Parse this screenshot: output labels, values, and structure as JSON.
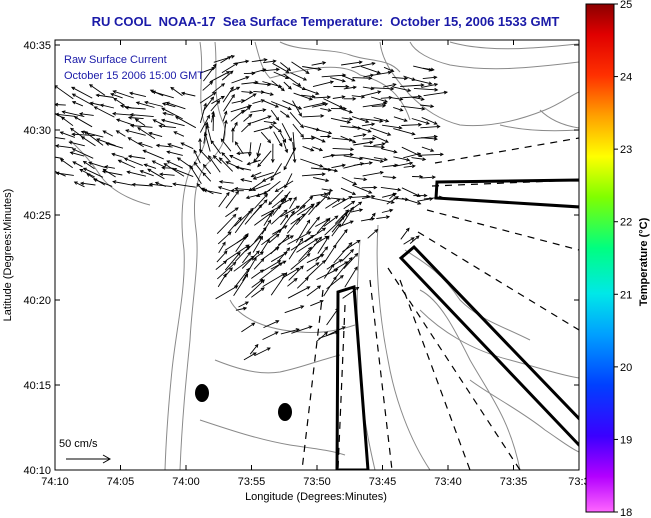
{
  "title": "RU COOL  NOAA-17  Sea Surface Temperature:  October 15, 2006 1533 GMT",
  "annotation": {
    "line1": "Raw Surface Current",
    "line2": "October 15 2006 15:00 GMT",
    "scale_label": "50 cm/s"
  },
  "axes": {
    "xlabel": "Longitude (Degrees:Minutes)",
    "ylabel": "Latitude (Degrees:Minutes)",
    "xticks": [
      "74:10",
      "74:05",
      "74:00",
      "73:55",
      "73:50",
      "73:45",
      "73:40",
      "73:35",
      "73:3"
    ],
    "yticks": [
      "40:35",
      "40:30",
      "40:25",
      "40:20",
      "40:15",
      "40:10"
    ]
  },
  "colorbar": {
    "label": "Temperature (°C)",
    "ticks": [
      "25",
      "24",
      "23",
      "22",
      "21",
      "20",
      "19",
      "18"
    ]
  },
  "colors": {
    "title": "#1a1aa8",
    "annotation": "#1a1aa8",
    "vectors": "#000000",
    "contours": "#8a8a8a"
  }
}
